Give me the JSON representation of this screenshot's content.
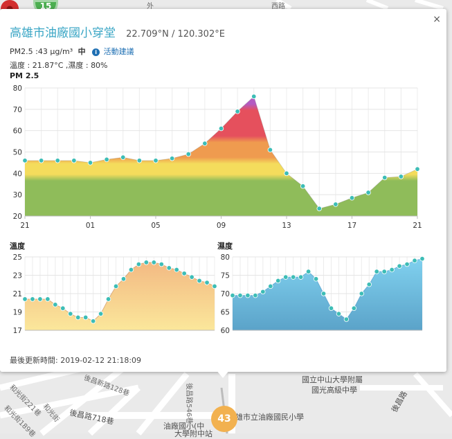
{
  "map": {
    "labels": [
      {
        "text": "雄市立油廠國民小學",
        "big": true
      },
      {
        "text": "國立中山大學附屬",
        "big": true
      },
      {
        "text": "國光高級中學",
        "big": true
      },
      {
        "text": "油廠國小(中",
        "big": true
      },
      {
        "text": "大學附中站",
        "big": true
      },
      {
        "text": "後昌路718巷",
        "big": true
      },
      {
        "text": "後昌路",
        "big": true
      },
      {
        "text": "後昌路546巷",
        "big": false
      },
      {
        "text": "和光街",
        "big": false
      },
      {
        "text": "和光街221巷",
        "big": false
      },
      {
        "text": "和光街189巷",
        "big": false
      },
      {
        "text": "後昌新路128巷",
        "big": false
      },
      {
        "text": "外",
        "big": false
      },
      {
        "text": "西路",
        "big": false
      }
    ],
    "cluster_value": "15",
    "marker_value": "43",
    "colors": {
      "cluster": "#4caf50",
      "marker": "#f2b14f",
      "pin": "#d32f2f"
    }
  },
  "popup": {
    "close_symbol": "×",
    "station_name": "高雄市油廠國小穿堂",
    "coordinates": "22.709°N / 120.302°E",
    "pm25_text": "PM2.5 :43 μg/m³",
    "pm25_level": "中",
    "advice_icon": "i",
    "advice_link": "活動建議",
    "weather_text": "溫度 : 21.87°C ,濕度 : 80%",
    "pm_chart_title": "PM 2.5",
    "temp_chart_title": "溫度",
    "humidity_chart_title": "濕度",
    "updated_text": "最後更新時間: 2019-02-12 21:18:09"
  },
  "chart_data": [
    {
      "type": "area",
      "title": "PM 2.5",
      "x_tick_labels": [
        "21",
        "01",
        "05",
        "09",
        "13",
        "17",
        "21"
      ],
      "y_ticks": [
        20,
        30,
        40,
        50,
        60,
        70,
        80
      ],
      "ylim": [
        20,
        80
      ],
      "grid": true,
      "values": [
        46,
        46,
        46,
        46,
        45,
        46.5,
        47.5,
        46,
        46,
        47,
        49,
        54,
        61,
        69,
        76,
        51,
        40,
        34,
        23.5,
        25.5,
        28.5,
        31,
        38,
        38.5,
        42
      ],
      "color_bands": [
        {
          "from": 20,
          "to": 38,
          "color": "#8fbc5a"
        },
        {
          "from": 38,
          "to": 46,
          "color": "#f4dc5c"
        },
        {
          "from": 46,
          "to": 56,
          "color": "#ef9b4f"
        },
        {
          "from": 56,
          "to": 71,
          "color": "#e5505d"
        },
        {
          "from": 71,
          "to": 80,
          "color": "#b35bc2"
        }
      ],
      "point_color": "#3dbdb6"
    },
    {
      "type": "area",
      "title": "溫度",
      "y_ticks": [
        17,
        19,
        21,
        23,
        25
      ],
      "ylim": [
        17,
        25
      ],
      "grid": true,
      "values": [
        20.4,
        20.4,
        20.4,
        20.4,
        19.8,
        19.4,
        18.8,
        18.4,
        18.4,
        18.0,
        18.8,
        20.4,
        21.8,
        22.6,
        23.6,
        24.2,
        24.4,
        24.4,
        24.2,
        23.8,
        23.6,
        23.2,
        22.8,
        22.4,
        22.2,
        21.8
      ],
      "fill_top": "#f2b681",
      "fill_bottom": "#fbe79b",
      "point_color": "#3dbdb6"
    },
    {
      "type": "area",
      "title": "濕度",
      "y_ticks": [
        60,
        65,
        70,
        75,
        80
      ],
      "ylim": [
        60,
        80
      ],
      "grid": true,
      "values": [
        69.5,
        69.5,
        69.5,
        69.5,
        70.5,
        72,
        73.5,
        74.5,
        74.5,
        74.5,
        76,
        74,
        70,
        66,
        64.5,
        63,
        66,
        70,
        72.5,
        76,
        76,
        76.5,
        77.5,
        78,
        79,
        79.5
      ],
      "fill_top": "#81d2f0",
      "fill_bottom": "#5ba3c9",
      "point_color": "#3dbdb6"
    }
  ]
}
